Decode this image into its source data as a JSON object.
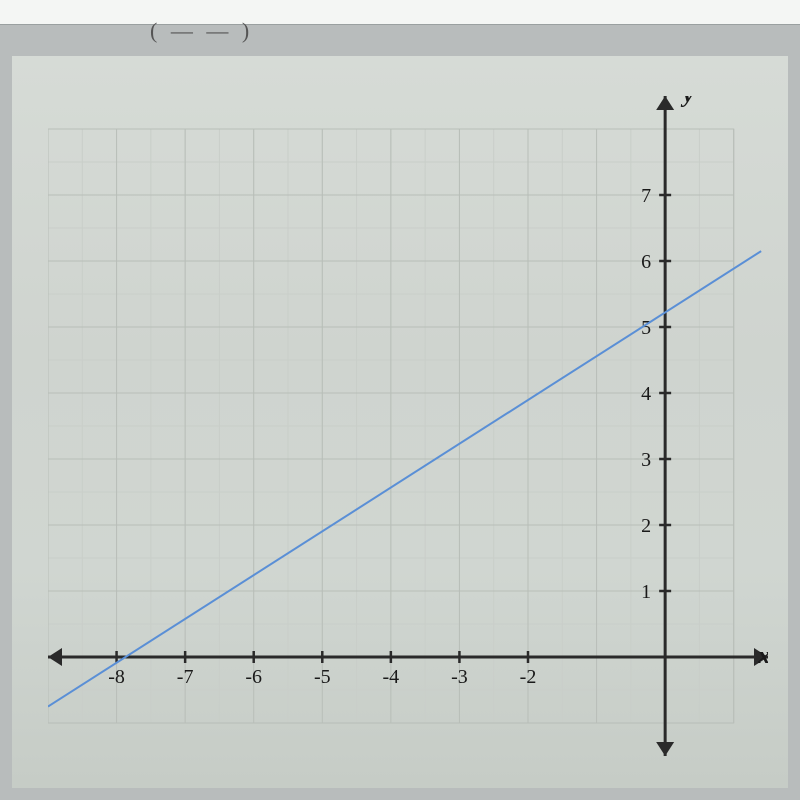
{
  "chart": {
    "type": "line",
    "background_color": "transparent",
    "grid_color": "#b8beb8",
    "grid_minor_color": "#c9cec9",
    "axis_color": "#2a2a2a",
    "line_color": "#5a8fd6",
    "line_width": 2,
    "x_axis_label": "x",
    "y_axis_label": "y",
    "axis_label_color": "#1a1a1a",
    "axis_label_fontsize": 24,
    "tick_label_color": "#1a1a1a",
    "tick_label_fontsize": 20,
    "xlim": [
      -9,
      1.5
    ],
    "ylim": [
      -1.5,
      8.5
    ],
    "x_ticks": [
      -8,
      -7,
      -6,
      -5,
      -4,
      -3,
      -2
    ],
    "y_ticks": [
      1,
      2,
      3,
      4,
      5,
      6,
      7
    ],
    "grid_x_min": -9,
    "grid_x_max": 1,
    "grid_y_min": -1,
    "grid_y_max": 8,
    "grid_step_major": 1,
    "grid_step_minor": 0.5,
    "series": [
      {
        "points": [
          [
            -9,
            -0.75
          ],
          [
            1.4,
            6.15
          ]
        ]
      }
    ]
  }
}
